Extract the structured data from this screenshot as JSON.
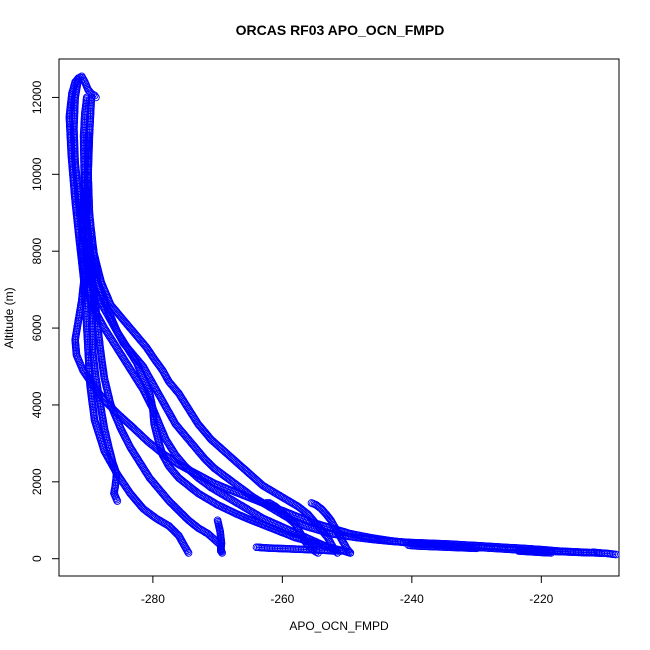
{
  "chart_data": {
    "type": "scatter",
    "title": "ORCAS RF03 APO_OCN_FMPD",
    "xlabel": "APO_OCN_FMPD",
    "ylabel": "Altitude (m)",
    "xlim": [
      -294.5,
      -208
    ],
    "ylim": [
      -450,
      13000
    ],
    "x_ticks": [
      -280,
      -260,
      -240,
      -220
    ],
    "y_ticks": [
      0,
      2000,
      4000,
      6000,
      8000,
      10000,
      12000
    ],
    "x_tick_labels": [
      "-280",
      "-260",
      "-240",
      "-220"
    ],
    "y_tick_labels": [
      "0",
      "2000",
      "4000",
      "6000",
      "8000",
      "10000",
      "12000"
    ],
    "grid": false,
    "marker": "open-circle",
    "connect_points": true,
    "color": "#0000ff",
    "series": [
      {
        "x": [
          -292,
          -292.5,
          -292.9,
          -292.6,
          -292,
          -291.3,
          -290.7,
          -290.4,
          -290.2,
          -290,
          -289.7,
          -289,
          -287.5,
          -285.5,
          -283.5,
          -281.5,
          -279.5,
          -277.5,
          -276,
          -275,
          -274.5
        ],
        "y": [
          12400,
          12100,
          11500,
          10500,
          9300,
          8200,
          7300,
          6600,
          6000,
          5400,
          4500,
          3600,
          2800,
          2200,
          1700,
          1300,
          1050,
          850,
          600,
          300,
          150
        ]
      },
      {
        "x": [
          -291.5,
          -292,
          -292.2,
          -292,
          -291.4,
          -290.6,
          -289.8,
          -289,
          -288.5,
          -288,
          -287.5,
          -286.5,
          -285,
          -283.5,
          -282,
          -280.5,
          -279,
          -277.5,
          -276,
          -274.5,
          -273,
          -271.5,
          -270.5,
          -269.5,
          -269.5
        ],
        "y": [
          12500,
          12000,
          11200,
          10300,
          9300,
          8300,
          7500,
          6800,
          6000,
          5300,
          4700,
          4000,
          3400,
          2900,
          2500,
          2100,
          1800,
          1500,
          1250,
          1000,
          800,
          650,
          500,
          350,
          200
        ]
      },
      {
        "x": [
          -290.2,
          -290.5,
          -290.7,
          -290.6,
          -290.3,
          -289.9,
          -289.5,
          -289.2,
          -289.2,
          -289.4,
          -289.3,
          -288.8,
          -288.1,
          -287.5,
          -286.8,
          -286.2,
          -285.6,
          -285.8,
          -286,
          -285.5
        ],
        "y": [
          12000,
          11600,
          11000,
          10000,
          9000,
          8200,
          7500,
          7000,
          6500,
          6000,
          5400,
          4700,
          4000,
          3400,
          2900,
          2500,
          2200,
          1900,
          1700,
          1500
        ]
      },
      {
        "x": [
          -289.5,
          -289.8,
          -290,
          -290.2,
          -290.2,
          -290,
          -289.5,
          -288.5,
          -287.5,
          -286.5,
          -285.5,
          -284.5,
          -283,
          -281.5,
          -280.5,
          -279.5,
          -278.5,
          -277.5,
          -276.5,
          -275,
          -273.5,
          -272,
          -270.5,
          -268.5,
          -266.5,
          -264.5,
          -262.5,
          -260.5,
          -258.5,
          -256.5,
          -254.5,
          -252.5,
          -250.5,
          -248.5,
          -246,
          -243,
          -240,
          -237,
          -234,
          -231,
          -228,
          -225,
          -222,
          -219.5,
          -217.5,
          -215,
          -212.5,
          -210,
          -208.5
        ],
        "y": [
          12000,
          11000,
          10000,
          9000,
          8200,
          7600,
          7200,
          6800,
          6500,
          6200,
          5900,
          5600,
          5300,
          5000,
          4700,
          4400,
          4100,
          3800,
          3500,
          3200,
          2900,
          2600,
          2350,
          2100,
          1850,
          1600,
          1400,
          1200,
          1000,
          850,
          750,
          650,
          600,
          550,
          500,
          450,
          420,
          400,
          380,
          350,
          320,
          290,
          260,
          230,
          200,
          180,
          160,
          140,
          110
        ]
      },
      {
        "x": [
          -290,
          -290,
          -289.8,
          -289.2,
          -288,
          -286.5,
          -284.5,
          -282.5,
          -281,
          -279.8,
          -278.5,
          -277.5,
          -276,
          -274.5,
          -273,
          -271,
          -269,
          -267,
          -265,
          -263,
          -261,
          -259,
          -257.5,
          -256,
          -255,
          -254,
          -253,
          -252.5,
          -252,
          -251.5
        ],
        "y": [
          11000,
          10000,
          9000,
          8000,
          7200,
          6600,
          6200,
          5800,
          5500,
          5200,
          4900,
          4600,
          4300,
          3900,
          3500,
          3100,
          2800,
          2500,
          2200,
          1900,
          1700,
          1500,
          1350,
          1150,
          950,
          750,
          550,
          400,
          250,
          150
        ]
      },
      {
        "x": [
          -289.5,
          -289,
          -288.5,
          -287.5,
          -286.5,
          -285.5,
          -284,
          -282.5,
          -281.5,
          -280.5,
          -280,
          -279.8,
          -279.2,
          -278.5,
          -277.5,
          -276,
          -274.5,
          -273,
          -271.5,
          -270,
          -268.5,
          -267,
          -265.5,
          -264,
          -262.5,
          -261,
          -259.5,
          -258,
          -256.5,
          -255,
          -253.5,
          -252,
          -250.5,
          -249.5
        ],
        "y": [
          8500,
          7800,
          7200,
          6700,
          6300,
          5900,
          5500,
          5100,
          4700,
          4300,
          3900,
          3500,
          3100,
          2700,
          2400,
          2100,
          1900,
          1700,
          1550,
          1400,
          1280,
          1160,
          1050,
          950,
          850,
          750,
          650,
          550,
          480,
          400,
          330,
          260,
          200,
          150
        ]
      },
      {
        "x": [
          -290.5,
          -290.8,
          -291,
          -290.5,
          -289.8,
          -288.8,
          -287.5,
          -286,
          -284.5,
          -283,
          -281.5,
          -280,
          -279,
          -278,
          -276.5,
          -275,
          -273,
          -271,
          -269,
          -267,
          -265,
          -263,
          -261,
          -259,
          -257,
          -255,
          -253,
          -251
        ],
        "y": [
          10000,
          9000,
          8000,
          7300,
          6800,
          6400,
          6000,
          5600,
          5200,
          4800,
          4400,
          3900,
          3500,
          3100,
          2700,
          2400,
          2100,
          1850,
          1650,
          1450,
          1250,
          1050,
          900,
          750,
          600,
          450,
          300,
          200
        ]
      },
      {
        "x": [
          -290.6,
          -291,
          -291.5,
          -292,
          -291.8,
          -290.8,
          -289.2,
          -287.4,
          -285.3,
          -283,
          -280.8,
          -278.6,
          -276,
          -273.2,
          -270.4,
          -267.5,
          -264.5,
          -261.5,
          -258.5,
          -255.5,
          -252.5,
          -249.5,
          -246.5,
          -243.5,
          -240.5,
          -237.5,
          -234.5,
          -231.5,
          -228.5,
          -225.5,
          -222.5,
          -219.5,
          -216.5,
          -213.5,
          -211
        ],
        "y": [
          7300,
          6700,
          6200,
          5700,
          5300,
          4900,
          4500,
          4100,
          3750,
          3400,
          3050,
          2750,
          2450,
          2200,
          1950,
          1750,
          1550,
          1350,
          1150,
          950,
          800,
          650,
          550,
          470,
          410,
          370,
          340,
          310,
          280,
          250,
          220,
          200,
          180,
          160,
          150
        ]
      },
      {
        "x": [
          -262.5,
          -262,
          -261,
          -260,
          -259,
          -258,
          -257.5,
          -257,
          -256.5,
          -256,
          -255.5,
          -255,
          -254.5
        ],
        "y": [
          1450,
          1450,
          1350,
          1200,
          1050,
          900,
          750,
          600,
          450,
          350,
          250,
          200,
          150
        ]
      },
      {
        "x": [
          -255.5,
          -254.8,
          -254,
          -253.2,
          -252.5,
          -252,
          -251.5,
          -251,
          -250.5,
          -250,
          -249.5
        ],
        "y": [
          1450,
          1400,
          1300,
          1150,
          1000,
          850,
          700,
          550,
          400,
          250,
          150
        ]
      },
      {
        "x": [
          -270,
          -269.8,
          -269.6,
          -269.5,
          -269.4,
          -269.5,
          -269.3
        ],
        "y": [
          1000,
          850,
          700,
          550,
          400,
          250,
          150
        ]
      },
      {
        "x": [
          -264,
          -262.5,
          -261,
          -259.5,
          -258,
          -256.5,
          -255,
          -253.5,
          -252
        ],
        "y": [
          300,
          280,
          270,
          260,
          250,
          240,
          230,
          220,
          200
        ]
      },
      {
        "x": [
          -240.5,
          -239,
          -237.5,
          -236,
          -234.5,
          -233,
          -231.5,
          -230
        ],
        "y": [
          350,
          330,
          320,
          310,
          300,
          290,
          280,
          270
        ]
      },
      {
        "x": [
          -223.5,
          -222.5,
          -221.5,
          -220.5,
          -219.5,
          -218.5
        ],
        "y": [
          200,
          190,
          180,
          170,
          160,
          150
        ]
      },
      {
        "x": [
          -212,
          -211.5,
          -211
        ],
        "y": [
          170,
          160,
          150
        ]
      },
      {
        "x": [
          -292,
          -291.5,
          -291,
          -290.5,
          -290,
          -289.5,
          -289,
          -288.8
        ],
        "y": [
          12400,
          12500,
          12550,
          12400,
          12200,
          12100,
          12050,
          12000
        ]
      }
    ]
  }
}
